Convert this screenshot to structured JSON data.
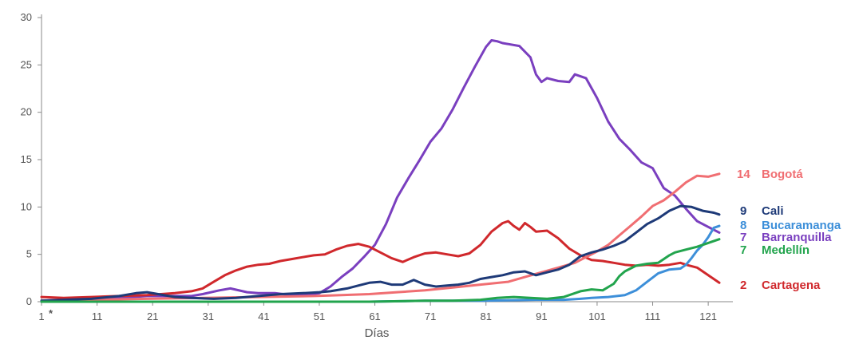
{
  "chart_data": {
    "type": "line",
    "title": "",
    "xlabel": "Días",
    "ylabel": "",
    "xlim": [
      1,
      123
    ],
    "ylim": [
      0,
      30
    ],
    "grid": false,
    "legend": "end-of-line labels",
    "x_ticks": [
      1,
      11,
      21,
      31,
      41,
      51,
      61,
      71,
      81,
      91,
      101,
      111,
      121
    ],
    "x_tick_labels": [
      "1",
      "11",
      "21",
      "31",
      "41",
      "51",
      "61",
      "71",
      "81",
      "91",
      "101",
      "111",
      "121"
    ],
    "first_tick_marker": "*",
    "y_ticks": [
      0,
      5,
      10,
      15,
      20,
      25,
      30
    ],
    "y_tick_labels": [
      "0",
      "5",
      "10",
      "15",
      "20",
      "25",
      "30"
    ],
    "series": [
      {
        "name": "Barranquilla",
        "end_label": "7",
        "color": "#7a3fbf",
        "points": [
          [
            1,
            0.1
          ],
          [
            5,
            0.2
          ],
          [
            10,
            0.3
          ],
          [
            15,
            0.4
          ],
          [
            20,
            0.6
          ],
          [
            25,
            0.6
          ],
          [
            28,
            0.6
          ],
          [
            30,
            0.8
          ],
          [
            33,
            1.2
          ],
          [
            35,
            1.4
          ],
          [
            38,
            1.0
          ],
          [
            40,
            0.9
          ],
          [
            43,
            0.9
          ],
          [
            46,
            0.7
          ],
          [
            49,
            0.7
          ],
          [
            51,
            0.9
          ],
          [
            53,
            1.6
          ],
          [
            55,
            2.6
          ],
          [
            57,
            3.5
          ],
          [
            59,
            4.7
          ],
          [
            61,
            6.0
          ],
          [
            63,
            8.2
          ],
          [
            65,
            11.0
          ],
          [
            67,
            13.0
          ],
          [
            69,
            14.9
          ],
          [
            71,
            16.9
          ],
          [
            73,
            18.3
          ],
          [
            75,
            20.3
          ],
          [
            77,
            22.6
          ],
          [
            79,
            24.8
          ],
          [
            81,
            26.9
          ],
          [
            82,
            27.6
          ],
          [
            83,
            27.5
          ],
          [
            84,
            27.3
          ],
          [
            85,
            27.2
          ],
          [
            87,
            27.0
          ],
          [
            89,
            25.8
          ],
          [
            90,
            24.0
          ],
          [
            91,
            23.2
          ],
          [
            92,
            23.6
          ],
          [
            94,
            23.3
          ],
          [
            96,
            23.2
          ],
          [
            97,
            24.0
          ],
          [
            99,
            23.6
          ],
          [
            101,
            21.5
          ],
          [
            103,
            19.0
          ],
          [
            105,
            17.2
          ],
          [
            107,
            16.0
          ],
          [
            109,
            14.7
          ],
          [
            111,
            14.1
          ],
          [
            113,
            12.0
          ],
          [
            115,
            11.2
          ],
          [
            117,
            9.8
          ],
          [
            119,
            8.5
          ],
          [
            121,
            7.9
          ],
          [
            123,
            7.3
          ]
        ]
      },
      {
        "name": "Cartagena",
        "end_label": "2",
        "color": "#d0282c",
        "points": [
          [
            1,
            0.5
          ],
          [
            5,
            0.4
          ],
          [
            10,
            0.5
          ],
          [
            15,
            0.6
          ],
          [
            20,
            0.7
          ],
          [
            25,
            0.9
          ],
          [
            28,
            1.1
          ],
          [
            30,
            1.4
          ],
          [
            32,
            2.1
          ],
          [
            34,
            2.8
          ],
          [
            36,
            3.3
          ],
          [
            38,
            3.7
          ],
          [
            40,
            3.9
          ],
          [
            42,
            4.0
          ],
          [
            44,
            4.3
          ],
          [
            46,
            4.5
          ],
          [
            48,
            4.7
          ],
          [
            50,
            4.9
          ],
          [
            52,
            5.0
          ],
          [
            54,
            5.5
          ],
          [
            56,
            5.9
          ],
          [
            58,
            6.1
          ],
          [
            60,
            5.8
          ],
          [
            62,
            5.2
          ],
          [
            64,
            4.6
          ],
          [
            66,
            4.2
          ],
          [
            68,
            4.7
          ],
          [
            70,
            5.1
          ],
          [
            72,
            5.2
          ],
          [
            74,
            5.0
          ],
          [
            76,
            4.8
          ],
          [
            78,
            5.1
          ],
          [
            80,
            6.0
          ],
          [
            82,
            7.4
          ],
          [
            84,
            8.3
          ],
          [
            85,
            8.5
          ],
          [
            86,
            8.0
          ],
          [
            87,
            7.6
          ],
          [
            88,
            8.3
          ],
          [
            89,
            7.9
          ],
          [
            90,
            7.4
          ],
          [
            92,
            7.5
          ],
          [
            94,
            6.7
          ],
          [
            96,
            5.6
          ],
          [
            98,
            4.9
          ],
          [
            100,
            4.4
          ],
          [
            102,
            4.3
          ],
          [
            104,
            4.1
          ],
          [
            106,
            3.9
          ],
          [
            108,
            3.8
          ],
          [
            110,
            3.9
          ],
          [
            112,
            3.8
          ],
          [
            114,
            3.9
          ],
          [
            116,
            4.1
          ],
          [
            117,
            3.9
          ],
          [
            119,
            3.6
          ],
          [
            121,
            2.8
          ],
          [
            123,
            2.0
          ]
        ]
      },
      {
        "name": "Bogotá",
        "end_label": "14",
        "color": "#f06e72",
        "points": [
          [
            1,
            0.1
          ],
          [
            10,
            0.2
          ],
          [
            20,
            0.3
          ],
          [
            30,
            0.4
          ],
          [
            40,
            0.5
          ],
          [
            50,
            0.6
          ],
          [
            55,
            0.7
          ],
          [
            60,
            0.8
          ],
          [
            65,
            1.0
          ],
          [
            70,
            1.2
          ],
          [
            75,
            1.5
          ],
          [
            80,
            1.8
          ],
          [
            85,
            2.1
          ],
          [
            88,
            2.6
          ],
          [
            91,
            3.1
          ],
          [
            94,
            3.6
          ],
          [
            97,
            4.1
          ],
          [
            99,
            4.7
          ],
          [
            101,
            5.3
          ],
          [
            103,
            6.0
          ],
          [
            105,
            7.0
          ],
          [
            107,
            8.0
          ],
          [
            109,
            9.0
          ],
          [
            111,
            10.1
          ],
          [
            113,
            10.7
          ],
          [
            115,
            11.6
          ],
          [
            117,
            12.6
          ],
          [
            119,
            13.3
          ],
          [
            121,
            13.2
          ],
          [
            123,
            13.5
          ]
        ]
      },
      {
        "name": "Cali",
        "end_label": "9",
        "color": "#1e3a78",
        "points": [
          [
            1,
            0.1
          ],
          [
            5,
            0.2
          ],
          [
            10,
            0.3
          ],
          [
            15,
            0.6
          ],
          [
            18,
            0.9
          ],
          [
            20,
            1.0
          ],
          [
            22,
            0.8
          ],
          [
            25,
            0.5
          ],
          [
            28,
            0.4
          ],
          [
            32,
            0.3
          ],
          [
            36,
            0.4
          ],
          [
            40,
            0.6
          ],
          [
            44,
            0.8
          ],
          [
            48,
            0.9
          ],
          [
            51,
            1.0
          ],
          [
            53,
            1.1
          ],
          [
            56,
            1.4
          ],
          [
            58,
            1.7
          ],
          [
            60,
            2.0
          ],
          [
            62,
            2.1
          ],
          [
            64,
            1.8
          ],
          [
            66,
            1.8
          ],
          [
            68,
            2.3
          ],
          [
            70,
            1.8
          ],
          [
            72,
            1.6
          ],
          [
            74,
            1.7
          ],
          [
            76,
            1.8
          ],
          [
            78,
            2.0
          ],
          [
            80,
            2.4
          ],
          [
            82,
            2.6
          ],
          [
            84,
            2.8
          ],
          [
            86,
            3.1
          ],
          [
            88,
            3.2
          ],
          [
            90,
            2.8
          ],
          [
            92,
            3.1
          ],
          [
            94,
            3.4
          ],
          [
            96,
            3.9
          ],
          [
            98,
            4.8
          ],
          [
            100,
            5.2
          ],
          [
            102,
            5.5
          ],
          [
            104,
            5.9
          ],
          [
            106,
            6.4
          ],
          [
            108,
            7.3
          ],
          [
            110,
            8.2
          ],
          [
            112,
            8.8
          ],
          [
            114,
            9.6
          ],
          [
            116,
            10.1
          ],
          [
            118,
            10.0
          ],
          [
            120,
            9.6
          ],
          [
            122,
            9.4
          ],
          [
            123,
            9.2
          ]
        ]
      },
      {
        "name": "Bucaramanga",
        "end_label": "8",
        "color": "#3d8fd9",
        "points": [
          [
            1,
            0.0
          ],
          [
            20,
            0.0
          ],
          [
            40,
            0.0
          ],
          [
            60,
            0.0
          ],
          [
            70,
            0.1
          ],
          [
            80,
            0.1
          ],
          [
            90,
            0.2
          ],
          [
            95,
            0.2
          ],
          [
            98,
            0.3
          ],
          [
            100,
            0.4
          ],
          [
            103,
            0.5
          ],
          [
            106,
            0.7
          ],
          [
            108,
            1.2
          ],
          [
            110,
            2.1
          ],
          [
            112,
            3.0
          ],
          [
            114,
            3.4
          ],
          [
            116,
            3.5
          ],
          [
            117,
            3.9
          ],
          [
            118,
            4.6
          ],
          [
            119,
            5.4
          ],
          [
            120,
            6.0
          ],
          [
            121,
            6.8
          ],
          [
            122,
            7.8
          ],
          [
            123,
            8.0
          ]
        ]
      },
      {
        "name": "Medellín",
        "end_label": "7",
        "color": "#22a44d",
        "points": [
          [
            1,
            0.0
          ],
          [
            20,
            0.0
          ],
          [
            40,
            0.0
          ],
          [
            60,
            0.0
          ],
          [
            70,
            0.1
          ],
          [
            75,
            0.1
          ],
          [
            80,
            0.2
          ],
          [
            83,
            0.4
          ],
          [
            86,
            0.5
          ],
          [
            89,
            0.4
          ],
          [
            92,
            0.3
          ],
          [
            95,
            0.5
          ],
          [
            98,
            1.1
          ],
          [
            100,
            1.3
          ],
          [
            102,
            1.2
          ],
          [
            104,
            1.9
          ],
          [
            105,
            2.7
          ],
          [
            106,
            3.2
          ],
          [
            108,
            3.8
          ],
          [
            110,
            4.0
          ],
          [
            112,
            4.1
          ],
          [
            113,
            4.5
          ],
          [
            114,
            4.9
          ],
          [
            115,
            5.2
          ],
          [
            117,
            5.5
          ],
          [
            119,
            5.8
          ],
          [
            121,
            6.2
          ],
          [
            123,
            6.6
          ]
        ]
      }
    ]
  }
}
